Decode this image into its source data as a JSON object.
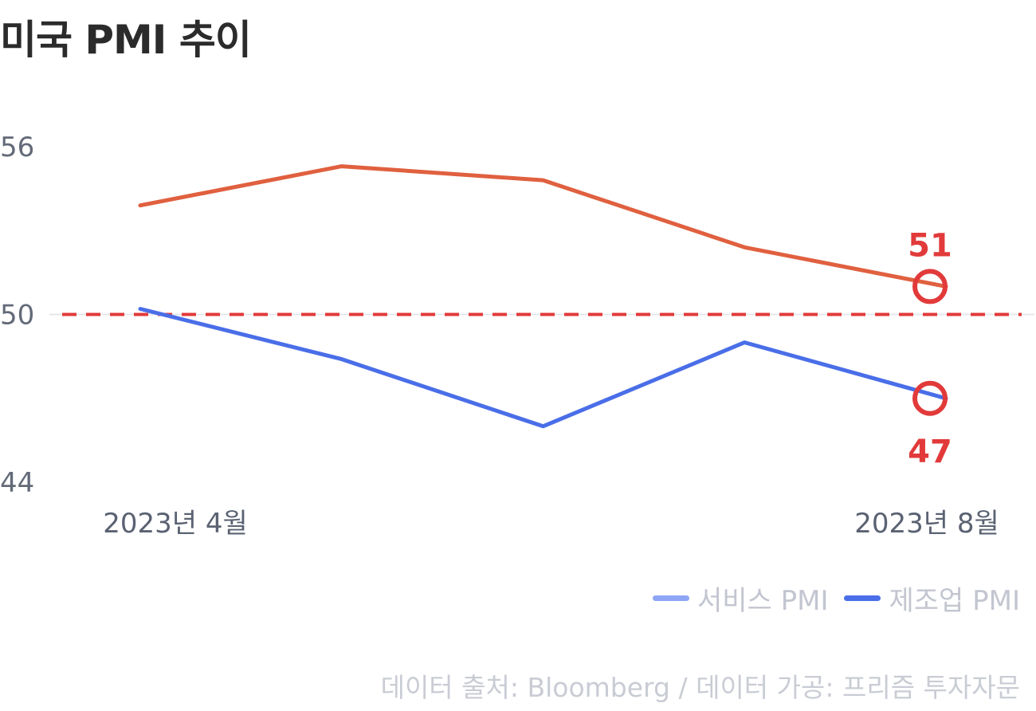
{
  "title": "미국 PMI 추이",
  "colors": {
    "services": "#e0603f",
    "manufacturing": "#4a6ee8",
    "services_legend": "#8ea6f5",
    "manufacturing_legend": "#4a6ee8",
    "highlight": "#e23a3a",
    "axis_text": "#636a78"
  },
  "chart_data": {
    "type": "line",
    "title": "미국 PMI 추이",
    "x": [
      "2023-04",
      "2023-05",
      "2023-06",
      "2023-07",
      "2023-08"
    ],
    "x_tick_labels": [
      "2023년 4월",
      "2023년 8월"
    ],
    "ylim": [
      44,
      56
    ],
    "y_ticks": [
      56,
      50,
      44
    ],
    "reference_line": {
      "value": 50,
      "style": "dashed",
      "color": "#e23a3a"
    },
    "series": [
      {
        "name": "서비스 PMI",
        "key": "services",
        "values": [
          53.9,
          55.3,
          54.8,
          52.4,
          51.0
        ]
      },
      {
        "name": "제조업 PMI",
        "key": "manufacturing",
        "values": [
          50.2,
          48.4,
          46.0,
          49.0,
          47.0
        ]
      }
    ],
    "data_labels": [
      {
        "series": 0,
        "index": 4,
        "text": "51",
        "position": "above"
      },
      {
        "series": 1,
        "index": 4,
        "text": "47",
        "position": "below"
      }
    ]
  },
  "legend": {
    "items": [
      {
        "label": "서비스 PMI"
      },
      {
        "label": "제조업 PMI"
      }
    ]
  },
  "source": "데이터 출처: Bloomberg / 데이터 가공: 프리즘 투자자문"
}
